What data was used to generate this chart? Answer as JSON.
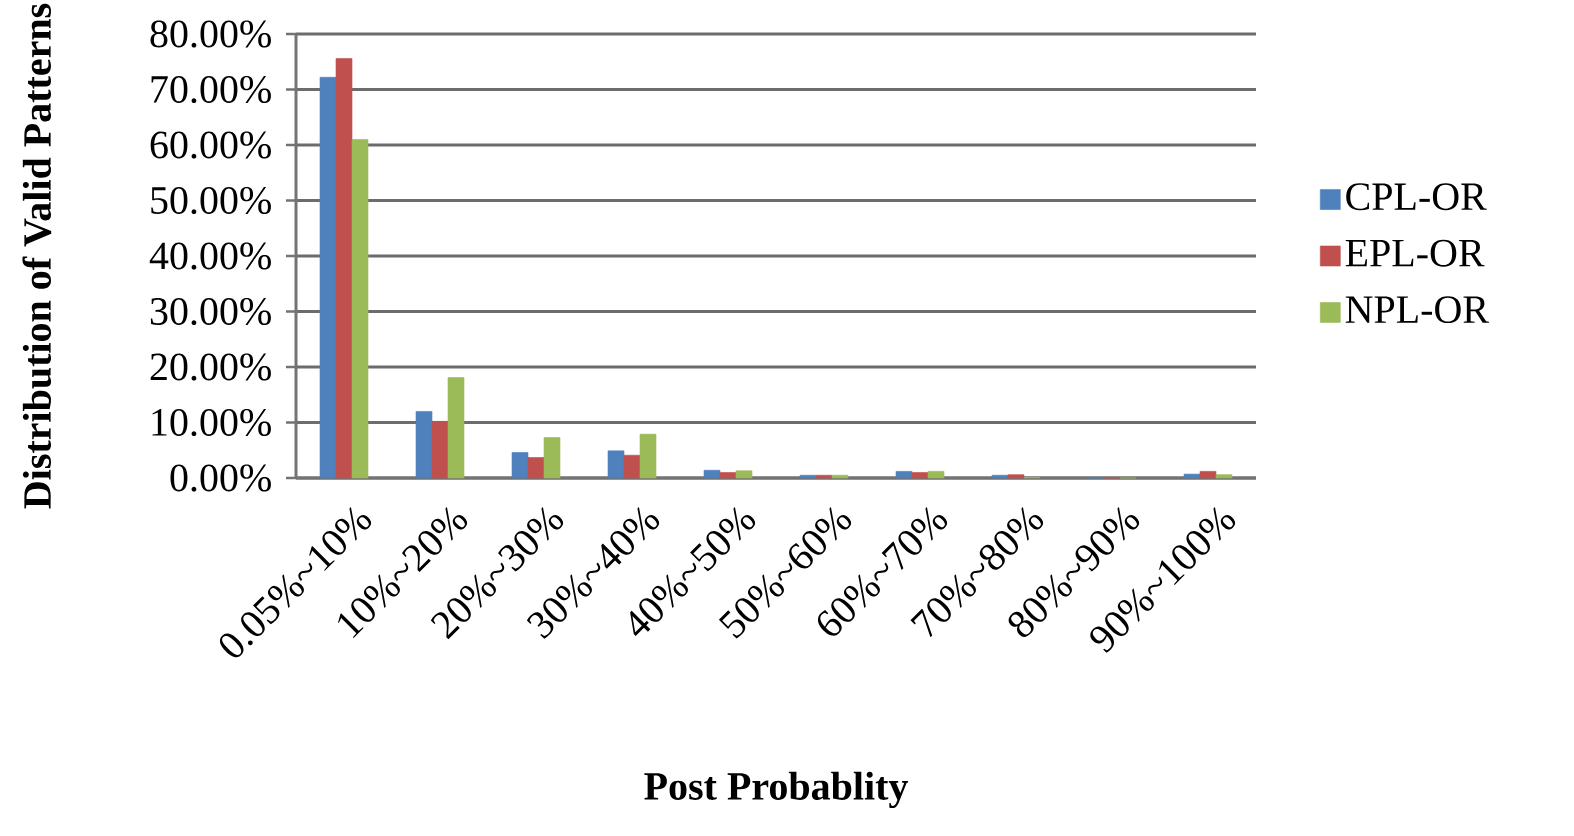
{
  "chart_data": {
    "type": "bar",
    "xlabel": "Post Probablity",
    "ylabel": "Distribution of Valid Patterns",
    "categories": [
      "0.05%~10%",
      "10%~20%",
      "20%~30%",
      "30%~40%",
      "40%~50%",
      "50%~60%",
      "60%~70%",
      "70%~80%",
      "80%~90%",
      "90%~100%"
    ],
    "series": [
      {
        "name": "CPL-OR",
        "color": "#4f81bd",
        "values": [
          72.2,
          12.0,
          4.6,
          4.9,
          1.4,
          0.5,
          1.2,
          0.5,
          0,
          0.7
        ]
      },
      {
        "name": "EPL-OR",
        "color": "#c0504d",
        "values": [
          75.6,
          10.2,
          3.7,
          4.1,
          1.0,
          0.5,
          1.0,
          0.6,
          0,
          1.2
        ]
      },
      {
        "name": "NPL-OR",
        "color": "#9bbb59",
        "values": [
          61.0,
          18.1,
          7.3,
          7.9,
          1.3,
          0.5,
          1.2,
          0.1,
          0,
          0.6
        ]
      }
    ],
    "ylim": [
      0,
      80
    ],
    "yticks": [
      {
        "value": 0,
        "label": "0.00%"
      },
      {
        "value": 10,
        "label": "10.00%"
      },
      {
        "value": 20,
        "label": "20.00%"
      },
      {
        "value": 30,
        "label": "30.00%"
      },
      {
        "value": 40,
        "label": "40.00%"
      },
      {
        "value": 50,
        "label": "50.00%"
      },
      {
        "value": 60,
        "label": "60.00%"
      },
      {
        "value": 70,
        "label": "70.00%"
      },
      {
        "value": 80,
        "label": "80.00%"
      }
    ],
    "grid": "y",
    "legend": "right"
  }
}
